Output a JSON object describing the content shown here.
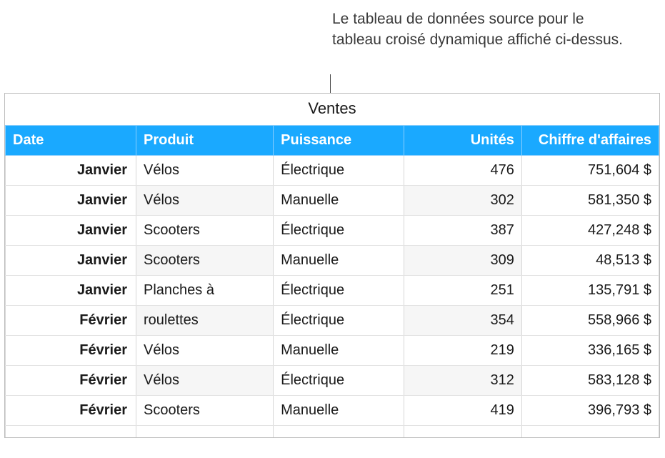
{
  "callout": {
    "text": "Le tableau de données source pour le tableau croisé dynamique affiché ci-dessus."
  },
  "table": {
    "title": "Ventes",
    "columns": [
      {
        "label": "Date",
        "align": "left"
      },
      {
        "label": "Produit",
        "align": "left"
      },
      {
        "label": "Puissance",
        "align": "left"
      },
      {
        "label": "Unités",
        "align": "right"
      },
      {
        "label": "Chiffre d'affaires",
        "align": "right"
      }
    ],
    "rows": [
      {
        "date": "Janvier",
        "produit": "Vélos",
        "puissance": "Électrique",
        "unites": "476",
        "ca": "751,604 $"
      },
      {
        "date": "Janvier",
        "produit": "Vélos",
        "puissance": "Manuelle",
        "unites": "302",
        "ca": "581,350 $"
      },
      {
        "date": "Janvier",
        "produit": "Scooters",
        "puissance": "Électrique",
        "unites": "387",
        "ca": "427,248 $"
      },
      {
        "date": "Janvier",
        "produit": "Scooters",
        "puissance": "Manuelle",
        "unites": "309",
        "ca": "48,513 $"
      },
      {
        "date": "Janvier",
        "produit": "Planches à",
        "puissance": "Électrique",
        "unites": "251",
        "ca": "135,791 $"
      },
      {
        "date": "Février",
        "produit": "roulettes",
        "puissance": "Électrique",
        "unites": "354",
        "ca": "558,966 $"
      },
      {
        "date": "Février",
        "produit": "Vélos",
        "puissance": "Manuelle",
        "unites": "219",
        "ca": "336,165 $"
      },
      {
        "date": "Février",
        "produit": "Vélos",
        "puissance": "Électrique",
        "unites": "312",
        "ca": "583,128 $"
      },
      {
        "date": "Février",
        "produit": "Scooters",
        "puissance": "Manuelle",
        "unites": "419",
        "ca": "396,793 $"
      }
    ],
    "colors": {
      "header_bg": "#1aa9ff",
      "header_text": "#ffffff",
      "body_text": "#1a1a1a",
      "border": "#bdbdbd",
      "cell_border": "#d7d7d7",
      "row_border": "#e3e3e3",
      "alt_bg": "#f6f6f6",
      "bg": "#ffffff"
    },
    "font": {
      "title_size": 22,
      "header_size": 20,
      "cell_size": 20,
      "callout_size": 21,
      "header_weight": 700,
      "date_weight": 700
    }
  }
}
